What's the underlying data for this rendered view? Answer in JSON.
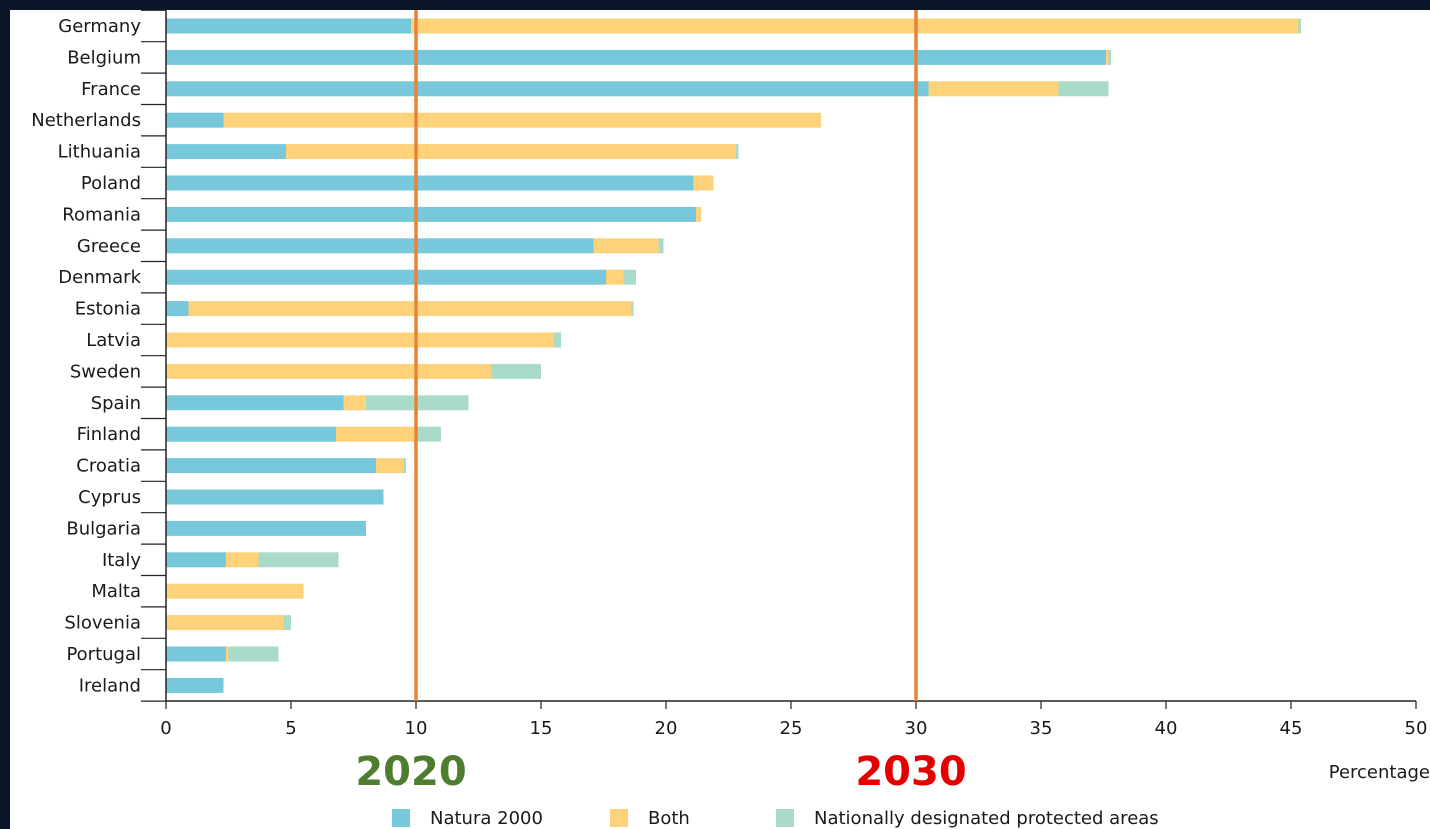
{
  "chart_data": {
    "type": "bar",
    "orientation": "horizontal",
    "stacked": true,
    "title": "",
    "xlabel": "Percentage",
    "ylabel": "",
    "xlim": [
      0,
      50
    ],
    "xticks": [
      0,
      5,
      10,
      15,
      20,
      25,
      30,
      35,
      40,
      45,
      50
    ],
    "grid": false,
    "legend_position": "bottom",
    "categories": [
      "Germany",
      "Belgium",
      "France",
      "Netherlands",
      "Lithuania",
      "Poland",
      "Romania",
      "Greece",
      "Denmark",
      "Estonia",
      "Latvia",
      "Sweden",
      "Spain",
      "Finland",
      "Croatia",
      "Cyprus",
      "Bulgaria",
      "Italy",
      "Malta",
      "Slovenia",
      "Portugal",
      "Ireland"
    ],
    "series": [
      {
        "name": "Natura 2000",
        "color": "#76c8da",
        "values": [
          9.8,
          37.6,
          30.5,
          2.3,
          4.8,
          21.1,
          21.2,
          17.1,
          17.6,
          0.9,
          0.0,
          0.0,
          7.1,
          6.8,
          8.4,
          8.7,
          8.0,
          2.4,
          0.0,
          0.0,
          2.4,
          2.3
        ]
      },
      {
        "name": "Both",
        "color": "#fed27b",
        "values": [
          35.5,
          0.1,
          5.2,
          23.9,
          18.0,
          0.8,
          0.2,
          2.6,
          0.7,
          17.7,
          15.5,
          13.0,
          0.9,
          3.2,
          1.1,
          0.0,
          0.0,
          1.3,
          5.5,
          4.7,
          0.1,
          0.0
        ]
      },
      {
        "name": "Nationally designated protected areas",
        "color": "#a9dbc8",
        "values": [
          0.1,
          0.1,
          2.0,
          0.0,
          0.1,
          0.0,
          0.0,
          0.2,
          0.5,
          0.1,
          0.3,
          2.0,
          4.1,
          1.0,
          0.1,
          0.0,
          0.0,
          3.2,
          0.0,
          0.3,
          2.0,
          0.0
        ]
      }
    ],
    "reference_lines": [
      {
        "x": 10,
        "label": "2020",
        "color": "#e88335",
        "label_color": "#4e7d2f"
      },
      {
        "x": 30,
        "label": "2030",
        "color": "#e88335",
        "label_color": "#e50000"
      }
    ]
  }
}
